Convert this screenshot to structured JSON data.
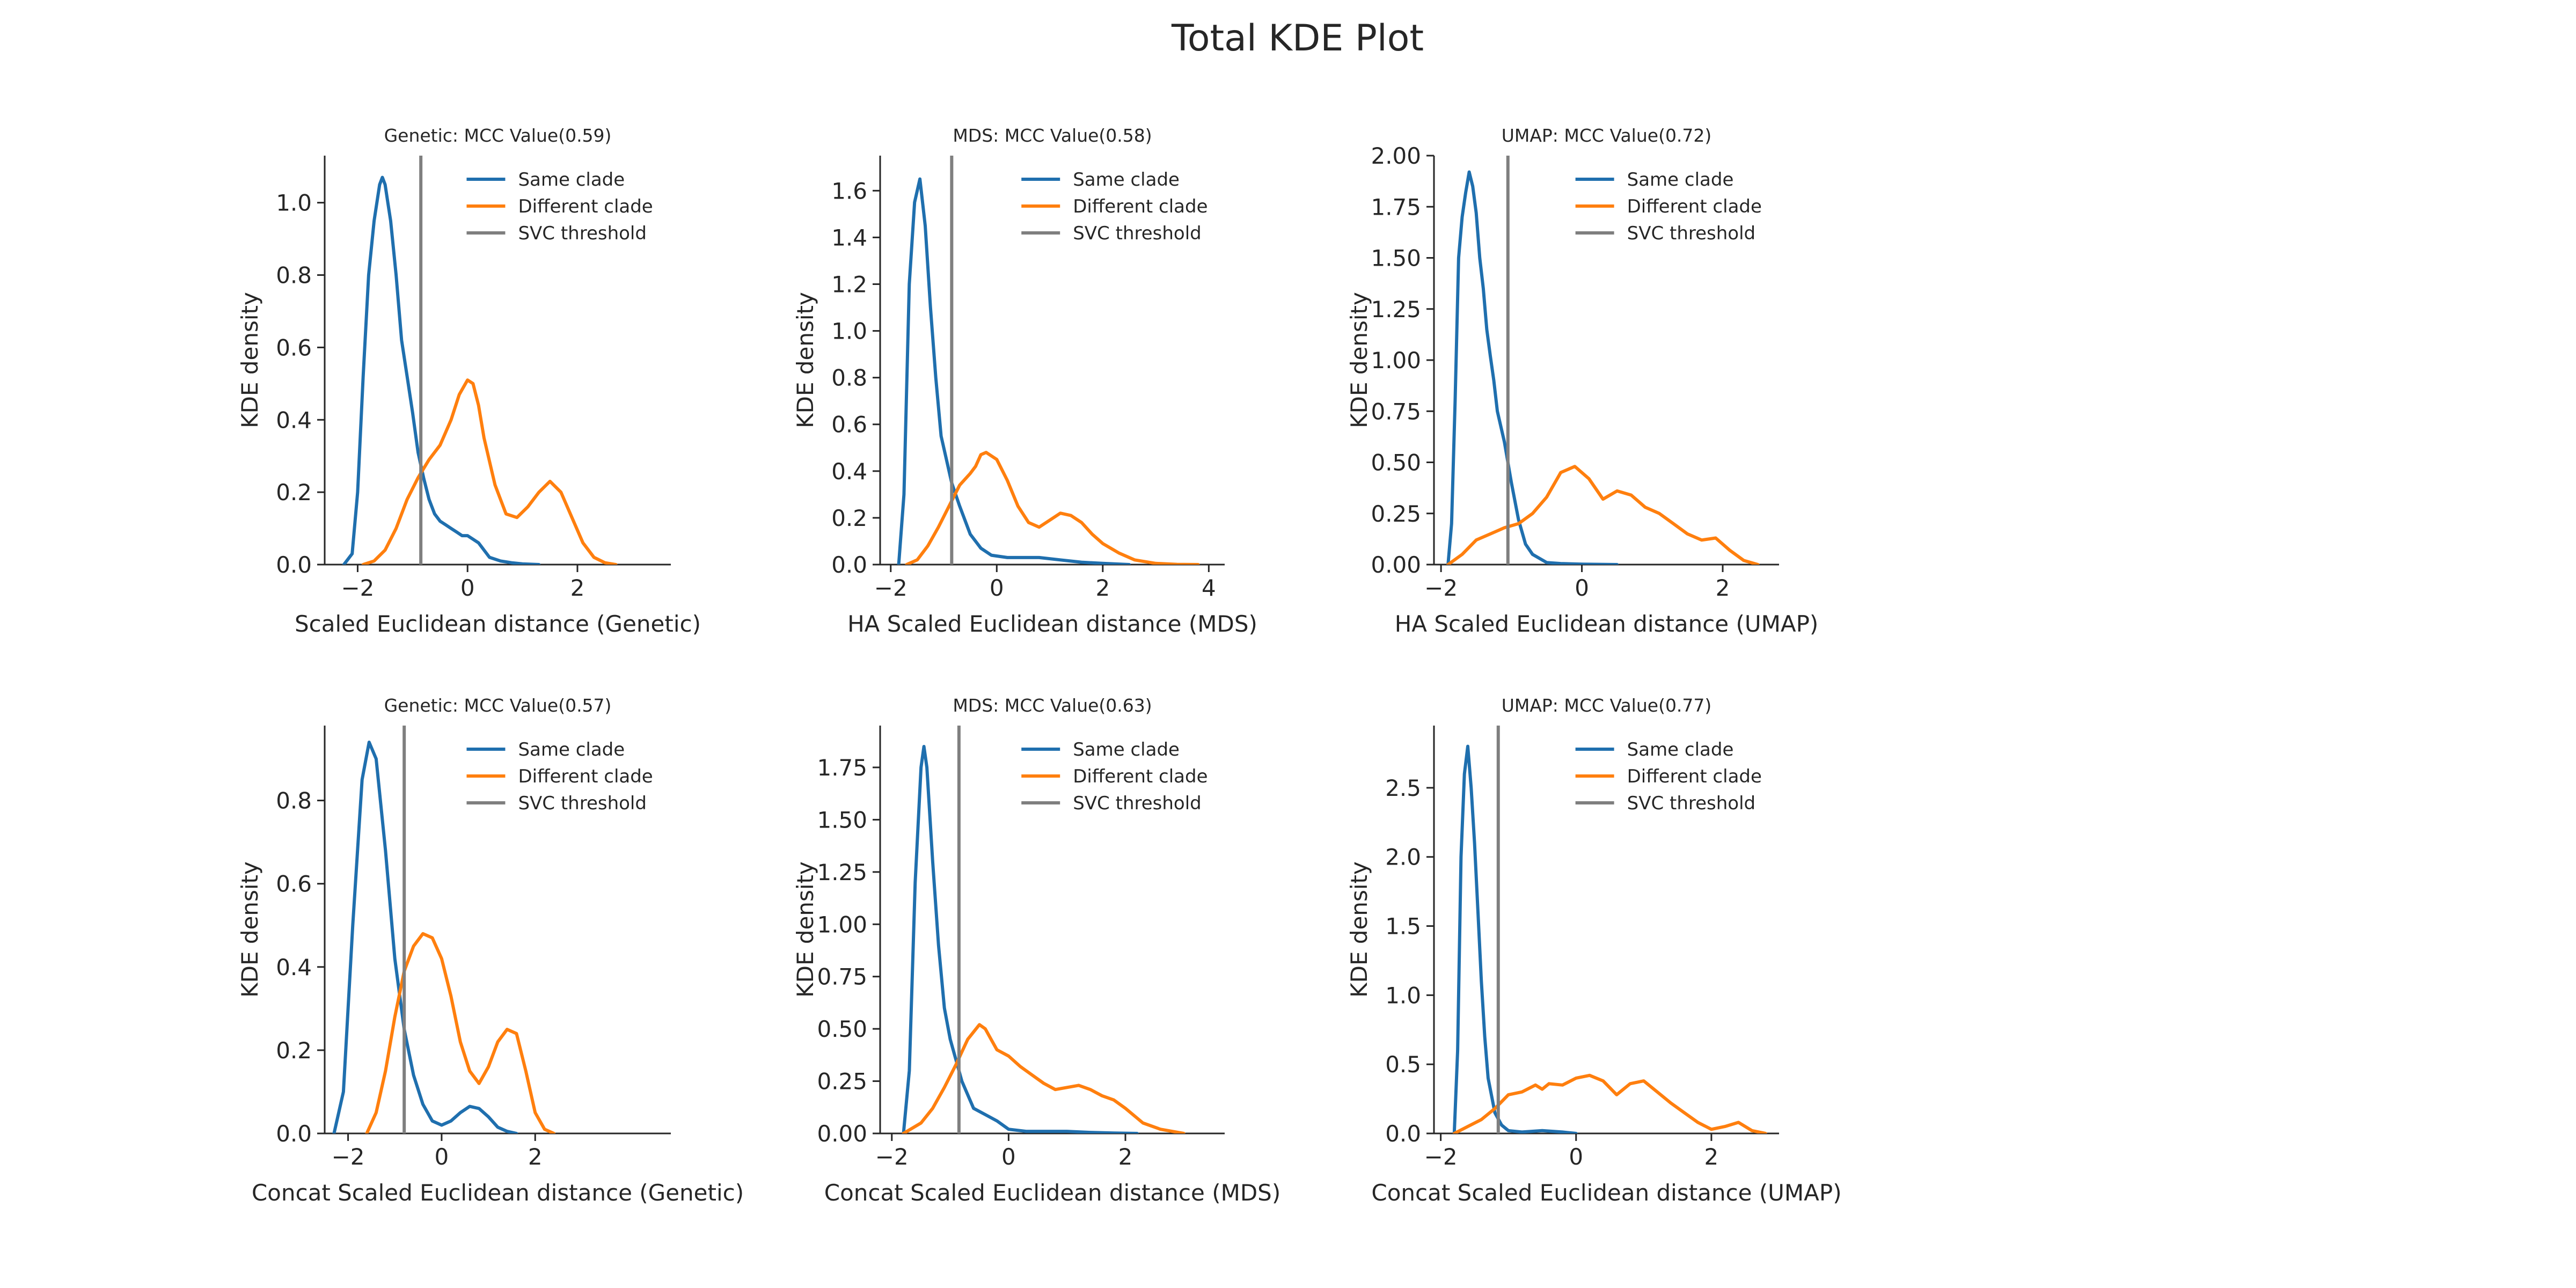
{
  "suptitle": "Total KDE Plot",
  "colors": {
    "same": "#1f6fae",
    "different": "#ff7f0e",
    "threshold": "#7f7f7f"
  },
  "chart_data": [
    {
      "type": "line",
      "title": "Genetic: MCC Value(0.59)",
      "xlabel": "Scaled Euclidean distance (Genetic)",
      "ylabel": "KDE density",
      "xlim": [
        -2.6,
        3.7
      ],
      "ylim": [
        0,
        1.13
      ],
      "xticks": [
        -2,
        0,
        2
      ],
      "xtick_labels": [
        "−2",
        "0",
        "2"
      ],
      "yticks": [
        0,
        0.2,
        0.4,
        0.6,
        0.8,
        1.0
      ],
      "ytick_labels": [
        "0.0",
        "0.2",
        "0.4",
        "0.6",
        "0.8",
        "1.0"
      ],
      "threshold": -0.85,
      "legend": [
        "Same clade",
        "Different clade",
        "SVC threshold"
      ],
      "legend_position": "upper right",
      "series": [
        {
          "name": "Same clade",
          "x": [
            -2.25,
            -2.1,
            -2.0,
            -1.9,
            -1.8,
            -1.7,
            -1.6,
            -1.55,
            -1.5,
            -1.45,
            -1.4,
            -1.3,
            -1.2,
            -1.1,
            -1.0,
            -0.9,
            -0.8,
            -0.7,
            -0.6,
            -0.5,
            -0.4,
            -0.3,
            -0.2,
            -0.1,
            0.0,
            0.1,
            0.2,
            0.3,
            0.4,
            0.6,
            0.8,
            1.0,
            1.3
          ],
          "y": [
            0.0,
            0.03,
            0.2,
            0.52,
            0.8,
            0.95,
            1.05,
            1.07,
            1.05,
            1.0,
            0.95,
            0.8,
            0.62,
            0.52,
            0.42,
            0.31,
            0.24,
            0.18,
            0.14,
            0.12,
            0.11,
            0.1,
            0.09,
            0.08,
            0.08,
            0.07,
            0.06,
            0.04,
            0.02,
            0.01,
            0.005,
            0.002,
            0.0
          ]
        },
        {
          "name": "Different clade",
          "x": [
            -1.9,
            -1.7,
            -1.5,
            -1.3,
            -1.1,
            -0.9,
            -0.7,
            -0.5,
            -0.3,
            -0.15,
            0.0,
            0.1,
            0.2,
            0.3,
            0.5,
            0.7,
            0.9,
            1.1,
            1.3,
            1.5,
            1.7,
            1.9,
            2.1,
            2.3,
            2.5,
            2.7
          ],
          "y": [
            0.0,
            0.01,
            0.04,
            0.1,
            0.18,
            0.24,
            0.29,
            0.33,
            0.4,
            0.47,
            0.51,
            0.5,
            0.44,
            0.35,
            0.22,
            0.14,
            0.13,
            0.16,
            0.2,
            0.23,
            0.2,
            0.13,
            0.06,
            0.02,
            0.005,
            0.0
          ]
        }
      ]
    },
    {
      "type": "line",
      "title": "MDS: MCC Value(0.58)",
      "xlabel": "HA Scaled Euclidean distance (MDS)",
      "ylabel": "KDE density",
      "xlim": [
        -2.2,
        4.3
      ],
      "ylim": [
        0,
        1.75
      ],
      "xticks": [
        -2,
        0,
        2,
        4
      ],
      "xtick_labels": [
        "−2",
        "0",
        "2",
        "4"
      ],
      "yticks": [
        0,
        0.2,
        0.4,
        0.6,
        0.8,
        1.0,
        1.2,
        1.4,
        1.6
      ],
      "ytick_labels": [
        "0.0",
        "0.2",
        "0.4",
        "0.6",
        "0.8",
        "1.0",
        "1.2",
        "1.4",
        "1.6"
      ],
      "threshold": -0.85,
      "legend": [
        "Same clade",
        "Different clade",
        "SVC threshold"
      ],
      "legend_position": "upper right",
      "series": [
        {
          "name": "Same clade",
          "x": [
            -1.85,
            -1.75,
            -1.65,
            -1.55,
            -1.45,
            -1.35,
            -1.25,
            -1.15,
            -1.05,
            -0.95,
            -0.85,
            -0.7,
            -0.5,
            -0.3,
            -0.1,
            0.2,
            0.5,
            0.8,
            1.2,
            1.6,
            2.0,
            2.5
          ],
          "y": [
            0.0,
            0.3,
            1.2,
            1.55,
            1.65,
            1.45,
            1.1,
            0.8,
            0.55,
            0.45,
            0.35,
            0.25,
            0.13,
            0.07,
            0.04,
            0.03,
            0.03,
            0.03,
            0.02,
            0.01,
            0.005,
            0.0
          ]
        },
        {
          "name": "Different clade",
          "x": [
            -1.7,
            -1.5,
            -1.3,
            -1.1,
            -0.9,
            -0.7,
            -0.5,
            -0.4,
            -0.3,
            -0.2,
            0.0,
            0.2,
            0.4,
            0.6,
            0.8,
            1.0,
            1.2,
            1.4,
            1.6,
            1.8,
            2.0,
            2.3,
            2.6,
            3.0,
            3.4,
            3.8
          ],
          "y": [
            0.0,
            0.02,
            0.08,
            0.16,
            0.25,
            0.34,
            0.39,
            0.42,
            0.47,
            0.48,
            0.45,
            0.36,
            0.25,
            0.18,
            0.16,
            0.19,
            0.22,
            0.21,
            0.18,
            0.13,
            0.09,
            0.05,
            0.02,
            0.005,
            0.001,
            0.0
          ]
        }
      ]
    },
    {
      "type": "line",
      "title": "UMAP: MCC Value(0.72)",
      "xlabel": "HA Scaled Euclidean distance (UMAP)",
      "ylabel": "KDE density",
      "xlim": [
        -2.1,
        2.8
      ],
      "ylim": [
        0,
        2.0
      ],
      "xticks": [
        -2,
        0,
        2
      ],
      "xtick_labels": [
        "−2",
        "0",
        "2"
      ],
      "yticks": [
        0,
        0.25,
        0.5,
        0.75,
        1.0,
        1.25,
        1.5,
        1.75,
        2.0
      ],
      "ytick_labels": [
        "0.00",
        "0.25",
        "0.50",
        "0.75",
        "1.00",
        "1.25",
        "1.50",
        "1.75",
        "2.00"
      ],
      "threshold": -1.05,
      "legend": [
        "Same clade",
        "Different clade",
        "SVC threshold"
      ],
      "legend_position": "upper right",
      "series": [
        {
          "name": "Same clade",
          "x": [
            -1.9,
            -1.85,
            -1.8,
            -1.75,
            -1.7,
            -1.65,
            -1.6,
            -1.55,
            -1.5,
            -1.45,
            -1.4,
            -1.35,
            -1.3,
            -1.25,
            -1.2,
            -1.1,
            -1.0,
            -0.9,
            -0.8,
            -0.7,
            -0.5,
            -0.3,
            0.0,
            0.5
          ],
          "y": [
            0.0,
            0.2,
            0.8,
            1.5,
            1.7,
            1.82,
            1.92,
            1.85,
            1.72,
            1.5,
            1.35,
            1.15,
            1.02,
            0.9,
            0.75,
            0.6,
            0.4,
            0.22,
            0.1,
            0.05,
            0.01,
            0.005,
            0.002,
            0.0
          ]
        },
        {
          "name": "Different clade",
          "x": [
            -1.9,
            -1.7,
            -1.5,
            -1.3,
            -1.1,
            -0.9,
            -0.7,
            -0.5,
            -0.3,
            -0.1,
            0.1,
            0.3,
            0.5,
            0.7,
            0.9,
            1.1,
            1.3,
            1.5,
            1.7,
            1.9,
            2.1,
            2.3,
            2.5
          ],
          "y": [
            0.0,
            0.05,
            0.12,
            0.15,
            0.18,
            0.2,
            0.25,
            0.33,
            0.45,
            0.48,
            0.42,
            0.32,
            0.36,
            0.34,
            0.28,
            0.25,
            0.2,
            0.15,
            0.12,
            0.13,
            0.07,
            0.02,
            0.0
          ]
        }
      ]
    },
    {
      "type": "line",
      "title": "Genetic: MCC Value(0.57)",
      "xlabel": "Concat Scaled Euclidean distance (Genetic)",
      "ylabel": "KDE density",
      "xlim": [
        -2.5,
        4.9
      ],
      "ylim": [
        0,
        0.98
      ],
      "xticks": [
        -2,
        0,
        2
      ],
      "xtick_labels": [
        "−2",
        "0",
        "2"
      ],
      "yticks": [
        0,
        0.2,
        0.4,
        0.6,
        0.8
      ],
      "ytick_labels": [
        "0.0",
        "0.2",
        "0.4",
        "0.6",
        "0.8"
      ],
      "threshold": -0.8,
      "legend": [
        "Same clade",
        "Different clade",
        "SVC threshold"
      ],
      "legend_position": "upper right",
      "series": [
        {
          "name": "Same clade",
          "x": [
            -2.3,
            -2.1,
            -1.9,
            -1.7,
            -1.55,
            -1.4,
            -1.2,
            -1.0,
            -0.8,
            -0.6,
            -0.4,
            -0.2,
            0.0,
            0.2,
            0.4,
            0.6,
            0.8,
            1.0,
            1.2,
            1.4,
            1.6
          ],
          "y": [
            0.0,
            0.1,
            0.5,
            0.85,
            0.94,
            0.9,
            0.68,
            0.42,
            0.25,
            0.14,
            0.07,
            0.03,
            0.02,
            0.03,
            0.05,
            0.065,
            0.06,
            0.04,
            0.015,
            0.005,
            0.0
          ]
        },
        {
          "name": "Different clade",
          "x": [
            -1.6,
            -1.4,
            -1.2,
            -1.0,
            -0.8,
            -0.6,
            -0.4,
            -0.2,
            0.0,
            0.2,
            0.4,
            0.6,
            0.8,
            1.0,
            1.2,
            1.4,
            1.6,
            1.8,
            2.0,
            2.2,
            2.4
          ],
          "y": [
            0.0,
            0.05,
            0.15,
            0.28,
            0.39,
            0.45,
            0.48,
            0.47,
            0.42,
            0.33,
            0.22,
            0.15,
            0.12,
            0.16,
            0.22,
            0.25,
            0.24,
            0.15,
            0.05,
            0.01,
            0.0
          ]
        }
      ]
    },
    {
      "type": "line",
      "title": "MDS: MCC Value(0.63)",
      "xlabel": "Concat Scaled Euclidean distance (MDS)",
      "ylabel": "KDE density",
      "xlim": [
        -2.2,
        3.7
      ],
      "ylim": [
        0,
        1.95
      ],
      "xticks": [
        -2,
        0,
        2
      ],
      "xtick_labels": [
        "−2",
        "0",
        "2"
      ],
      "yticks": [
        0,
        0.25,
        0.5,
        0.75,
        1.0,
        1.25,
        1.5,
        1.75
      ],
      "ytick_labels": [
        "0.00",
        "0.25",
        "0.50",
        "0.75",
        "1.00",
        "1.25",
        "1.50",
        "1.75"
      ],
      "threshold": -0.85,
      "legend": [
        "Same clade",
        "Different clade",
        "SVC threshold"
      ],
      "legend_position": "upper right",
      "series": [
        {
          "name": "Same clade",
          "x": [
            -1.8,
            -1.7,
            -1.6,
            -1.5,
            -1.45,
            -1.4,
            -1.3,
            -1.2,
            -1.1,
            -1.0,
            -0.9,
            -0.8,
            -0.6,
            -0.4,
            -0.2,
            0.0,
            0.3,
            0.6,
            1.0,
            1.4,
            1.8,
            2.2
          ],
          "y": [
            0.0,
            0.3,
            1.2,
            1.75,
            1.85,
            1.75,
            1.3,
            0.9,
            0.6,
            0.45,
            0.35,
            0.25,
            0.12,
            0.09,
            0.06,
            0.02,
            0.01,
            0.01,
            0.01,
            0.005,
            0.002,
            0.0
          ]
        },
        {
          "name": "Different clade",
          "x": [
            -1.8,
            -1.5,
            -1.3,
            -1.1,
            -0.9,
            -0.7,
            -0.5,
            -0.4,
            -0.3,
            -0.2,
            0.0,
            0.2,
            0.4,
            0.6,
            0.8,
            1.0,
            1.2,
            1.4,
            1.6,
            1.8,
            2.0,
            2.3,
            2.6,
            3.0
          ],
          "y": [
            0.0,
            0.05,
            0.12,
            0.22,
            0.33,
            0.45,
            0.52,
            0.5,
            0.45,
            0.4,
            0.37,
            0.32,
            0.28,
            0.24,
            0.21,
            0.22,
            0.23,
            0.21,
            0.18,
            0.16,
            0.12,
            0.05,
            0.02,
            0.0
          ]
        }
      ]
    },
    {
      "type": "line",
      "title": "UMAP: MCC Value(0.77)",
      "xlabel": "Concat Scaled Euclidean distance (UMAP)",
      "ylabel": "KDE density",
      "xlim": [
        -2.1,
        3.0
      ],
      "ylim": [
        0,
        2.95
      ],
      "xticks": [
        -2,
        0,
        2
      ],
      "xtick_labels": [
        "−2",
        "0",
        "2"
      ],
      "yticks": [
        0,
        0.5,
        1.0,
        1.5,
        2.0,
        2.5
      ],
      "ytick_labels": [
        "0.0",
        "0.5",
        "1.0",
        "1.5",
        "2.0",
        "2.5"
      ],
      "threshold": -1.15,
      "legend": [
        "Same clade",
        "Different clade",
        "SVC threshold"
      ],
      "legend_position": "upper right",
      "series": [
        {
          "name": "Same clade",
          "x": [
            -1.8,
            -1.75,
            -1.7,
            -1.65,
            -1.6,
            -1.55,
            -1.5,
            -1.45,
            -1.4,
            -1.35,
            -1.3,
            -1.2,
            -1.1,
            -1.0,
            -0.8,
            -0.5,
            -0.2,
            0.0
          ],
          "y": [
            0.0,
            0.6,
            2.0,
            2.6,
            2.8,
            2.5,
            2.1,
            1.6,
            1.1,
            0.7,
            0.4,
            0.15,
            0.06,
            0.02,
            0.01,
            0.02,
            0.01,
            0.0
          ]
        },
        {
          "name": "Different clade",
          "x": [
            -1.8,
            -1.6,
            -1.4,
            -1.2,
            -1.0,
            -0.8,
            -0.6,
            -0.5,
            -0.4,
            -0.2,
            0.0,
            0.2,
            0.4,
            0.6,
            0.8,
            1.0,
            1.2,
            1.4,
            1.6,
            1.8,
            2.0,
            2.2,
            2.4,
            2.6,
            2.8
          ],
          "y": [
            0.0,
            0.05,
            0.1,
            0.18,
            0.28,
            0.3,
            0.35,
            0.32,
            0.36,
            0.35,
            0.4,
            0.42,
            0.38,
            0.28,
            0.36,
            0.38,
            0.3,
            0.22,
            0.15,
            0.08,
            0.03,
            0.05,
            0.08,
            0.02,
            0.0
          ]
        }
      ]
    }
  ]
}
